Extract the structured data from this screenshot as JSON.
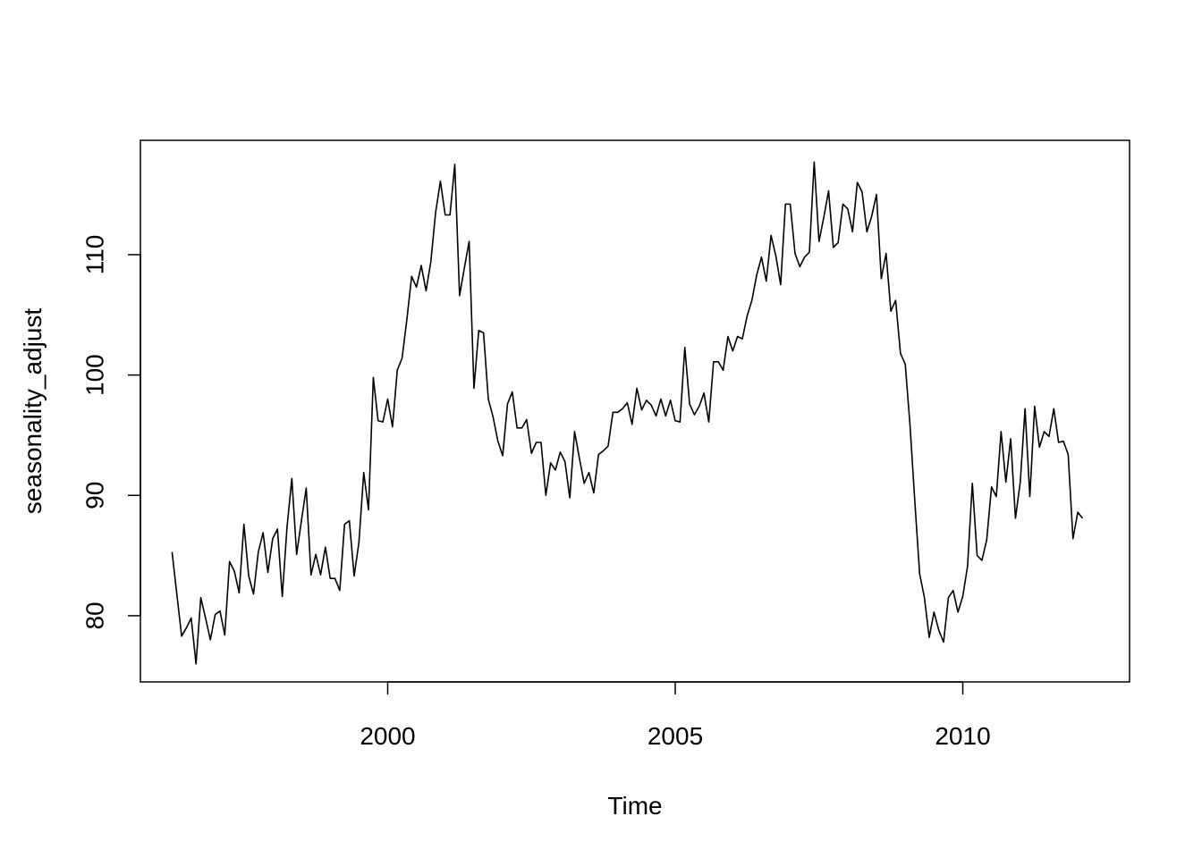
{
  "chart_data": {
    "type": "line",
    "title": "",
    "xlabel": "Time",
    "ylabel": "seasonality_adjust",
    "xlim": [
      1995.7,
      2012.9
    ],
    "ylim": [
      74.5,
      119.5
    ],
    "xticks": [
      2000,
      2005,
      2010
    ],
    "yticks": [
      80,
      90,
      100,
      110
    ],
    "x_tick_labels": [
      "2000",
      "2005",
      "2010"
    ],
    "y_tick_labels": [
      "80",
      "90",
      "100",
      "110"
    ],
    "grid": false,
    "legend": "none",
    "line_color": "#000000",
    "x_start": 1996.25,
    "x_step": 0.08333,
    "series": [
      {
        "values": [
          85.3,
          81.8,
          78.3,
          79.0,
          79.8,
          76.0,
          81.5,
          79.8,
          78.0,
          80.1,
          80.4,
          78.4,
          84.5,
          83.7,
          81.9,
          87.6,
          83.3,
          81.8,
          85.3,
          86.9,
          83.6,
          86.4,
          87.2,
          81.6,
          87.4,
          91.4,
          85.1,
          87.9,
          90.6,
          83.4,
          85.1,
          83.4,
          85.7,
          83.1,
          83.1,
          82.1,
          87.6,
          87.9,
          83.3,
          86.1,
          91.9,
          88.8,
          99.8,
          96.2,
          96.1,
          98.0,
          95.7,
          100.4,
          101.4,
          104.6,
          108.2,
          107.3,
          109.1,
          107.0,
          109.4,
          113.5,
          116.1,
          113.3,
          113.3,
          117.5,
          106.6,
          108.9,
          111.1,
          98.9,
          103.7,
          103.5,
          98.0,
          96.5,
          94.5,
          93.3,
          97.6,
          98.6,
          95.6,
          95.6,
          96.3,
          93.5,
          94.4,
          94.4,
          90.0,
          92.7,
          92.1,
          93.6,
          92.8,
          89.8,
          95.3,
          93.1,
          91.0,
          91.9,
          90.2,
          93.4,
          93.7,
          94.1,
          96.9,
          96.9,
          97.2,
          97.7,
          95.9,
          98.9,
          97.1,
          97.9,
          97.5,
          96.6,
          98.0,
          96.6,
          97.9,
          96.2,
          96.1,
          102.3,
          97.6,
          96.7,
          97.4,
          98.5,
          96.1,
          101.1,
          101.1,
          100.4,
          103.2,
          102.0,
          103.2,
          103.0,
          104.9,
          106.2,
          108.3,
          109.8,
          107.8,
          111.6,
          109.9,
          107.5,
          114.2,
          114.2,
          110.1,
          109.0,
          109.8,
          110.2,
          117.7,
          111.1,
          113.1,
          115.3,
          110.6,
          111.0,
          114.2,
          113.8,
          111.9,
          116.0,
          115.2,
          111.9,
          113.2,
          115.0,
          108.0,
          110.1,
          105.3,
          106.2,
          101.8,
          100.9,
          95.8,
          89.5,
          83.5,
          81.5,
          78.2,
          80.3,
          78.8,
          77.8,
          81.5,
          82.1,
          80.3,
          81.6,
          84.1,
          91.0,
          85.0,
          84.6,
          86.3,
          90.7,
          89.9,
          95.3,
          91.1,
          94.7,
          88.1,
          91.1,
          97.2,
          89.9,
          97.4,
          94.0,
          95.3,
          94.9,
          97.2,
          94.4,
          94.5,
          93.4,
          86.4,
          88.6,
          88.1
        ]
      }
    ]
  }
}
